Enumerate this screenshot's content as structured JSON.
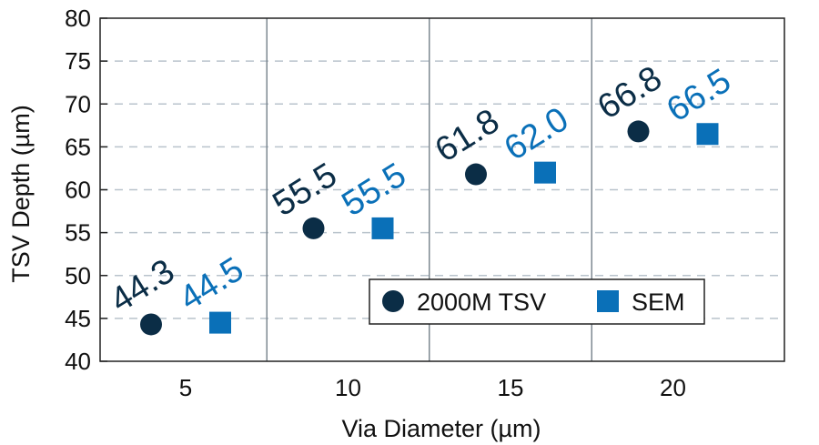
{
  "chart_data": {
    "type": "scatter",
    "title": "",
    "xlabel": "Via Diameter (µm)",
    "ylabel": "TSV Depth (µm)",
    "categories": [
      "5",
      "10",
      "15",
      "20"
    ],
    "ylim": [
      40,
      80
    ],
    "yticks": [
      "40",
      "45",
      "50",
      "55",
      "60",
      "65",
      "70",
      "75",
      "80"
    ],
    "grid": {
      "horizontal": true,
      "dashed": true,
      "category_separators": true
    },
    "legend_position": "bottom-right",
    "series": [
      {
        "name": "2000M TSV",
        "marker": "circle",
        "color": "#0b2d46",
        "values": [
          44.3,
          55.5,
          61.8,
          66.8
        ],
        "labels": [
          "44.3",
          "55.5",
          "61.8",
          "66.8"
        ]
      },
      {
        "name": "SEM",
        "marker": "square",
        "color": "#0a70b8",
        "values": [
          44.5,
          55.5,
          62.0,
          66.5
        ],
        "labels": [
          "44.5",
          "55.5",
          "62.0",
          "66.5"
        ]
      }
    ]
  }
}
